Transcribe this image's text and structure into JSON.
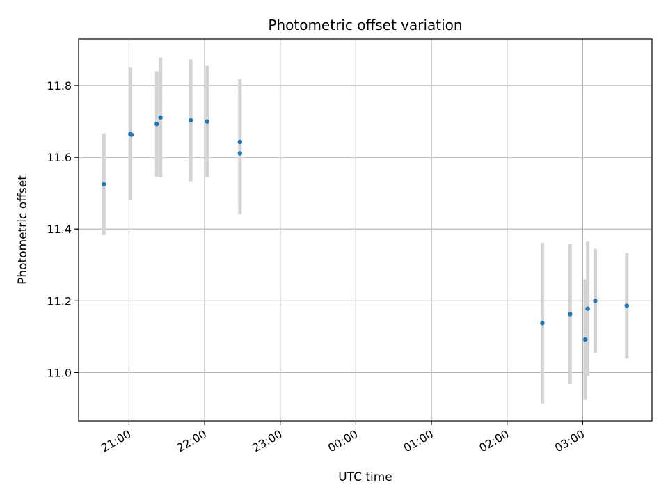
{
  "chart_data": {
    "type": "scatter",
    "title": "Photometric offset variation",
    "xlabel": "UTC time",
    "ylabel": "Photometric offset",
    "xlim": [
      "20:20",
      "03:55"
    ],
    "ylim": [
      10.865,
      11.93
    ],
    "x_ticks": [
      "21:00",
      "22:00",
      "23:00",
      "00:00",
      "01:00",
      "02:00",
      "03:00"
    ],
    "y_ticks": [
      11.0,
      11.2,
      11.4,
      11.6,
      11.8
    ],
    "grid": true,
    "colors": {
      "point": "#1f77b4",
      "errorbar": "#d3d3d3",
      "grid": "#b0b0b0"
    },
    "series": [
      {
        "points": [
          {
            "x": "20:40",
            "y": 11.525,
            "err": 0.142
          },
          {
            "x": "21:01",
            "y": 11.665,
            "err": 0.185
          },
          {
            "x": "21:02",
            "y": 11.663,
            "err": 0.0
          },
          {
            "x": "21:22",
            "y": 11.693,
            "err": 0.147
          },
          {
            "x": "21:25",
            "y": 11.711,
            "err": 0.167
          },
          {
            "x": "21:49",
            "y": 11.703,
            "err": 0.17
          },
          {
            "x": "22:02",
            "y": 11.7,
            "err": 0.155
          },
          {
            "x": "22:28",
            "y": 11.643,
            "err": 0.175
          },
          {
            "x": "22:28",
            "y": 11.611,
            "err": 0.17
          },
          {
            "x": "02:28",
            "y": 11.138,
            "err": 0.224
          },
          {
            "x": "02:50",
            "y": 11.163,
            "err": 0.195
          },
          {
            "x": "03:02",
            "y": 11.092,
            "err": 0.168
          },
          {
            "x": "03:04",
            "y": 11.178,
            "err": 0.187
          },
          {
            "x": "03:10",
            "y": 11.2,
            "err": 0.145
          },
          {
            "x": "03:35",
            "y": 11.186,
            "err": 0.147
          }
        ]
      }
    ]
  }
}
